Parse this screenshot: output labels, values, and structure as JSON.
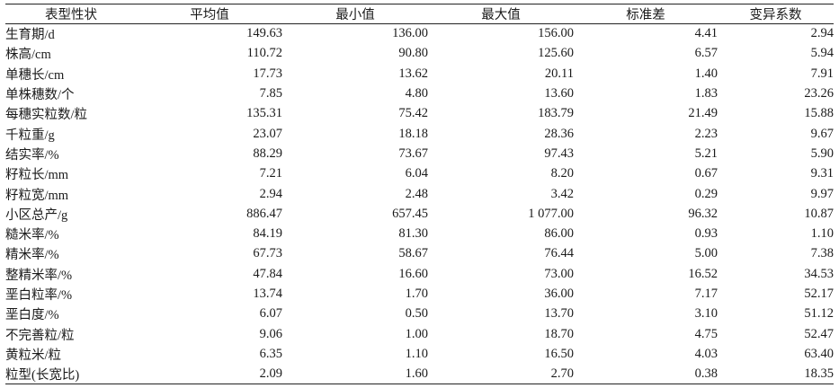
{
  "table": {
    "headers": [
      "表型性状",
      "平均值",
      "最小值",
      "最大值",
      "标准差",
      "变异系数"
    ],
    "rows": [
      [
        "生育期/d",
        "149.63",
        "136.00",
        "156.00",
        "4.41",
        "2.94"
      ],
      [
        "株高/cm",
        "110.72",
        "90.80",
        "125.60",
        "6.57",
        "5.94"
      ],
      [
        "单穗长/cm",
        "17.73",
        "13.62",
        "20.11",
        "1.40",
        "7.91"
      ],
      [
        "单株穗数/个",
        "7.85",
        "4.80",
        "13.60",
        "1.83",
        "23.26"
      ],
      [
        "每穗实粒数/粒",
        "135.31",
        "75.42",
        "183.79",
        "21.49",
        "15.88"
      ],
      [
        "千粒重/g",
        "23.07",
        "18.18",
        "28.36",
        "2.23",
        "9.67"
      ],
      [
        "结实率/%",
        "88.29",
        "73.67",
        "97.43",
        "5.21",
        "5.90"
      ],
      [
        "籽粒长/mm",
        "7.21",
        "6.04",
        "8.20",
        "0.67",
        "9.31"
      ],
      [
        "籽粒宽/mm",
        "2.94",
        "2.48",
        "3.42",
        "0.29",
        "9.97"
      ],
      [
        "小区总产/g",
        "886.47",
        "657.45",
        "1 077.00",
        "96.32",
        "10.87"
      ],
      [
        "糙米率/%",
        "84.19",
        "81.30",
        "86.00",
        "0.93",
        "1.10"
      ],
      [
        "精米率/%",
        "67.73",
        "58.67",
        "76.44",
        "5.00",
        "7.38"
      ],
      [
        "整精米率/%",
        "47.84",
        "16.60",
        "73.00",
        "16.52",
        "34.53"
      ],
      [
        "垩白粒率/%",
        "13.74",
        "1.70",
        "36.00",
        "7.17",
        "52.17"
      ],
      [
        "垩白度/%",
        "6.07",
        "0.50",
        "13.70",
        "3.10",
        "51.12"
      ],
      [
        "不完善粒/粒",
        "9.06",
        "1.00",
        "18.70",
        "4.75",
        "52.47"
      ],
      [
        "黄粒米/粒",
        "6.35",
        "1.10",
        "16.50",
        "4.03",
        "63.40"
      ],
      [
        "粒型(长宽比)",
        "2.09",
        "1.60",
        "2.70",
        "0.38",
        "18.35"
      ]
    ]
  }
}
